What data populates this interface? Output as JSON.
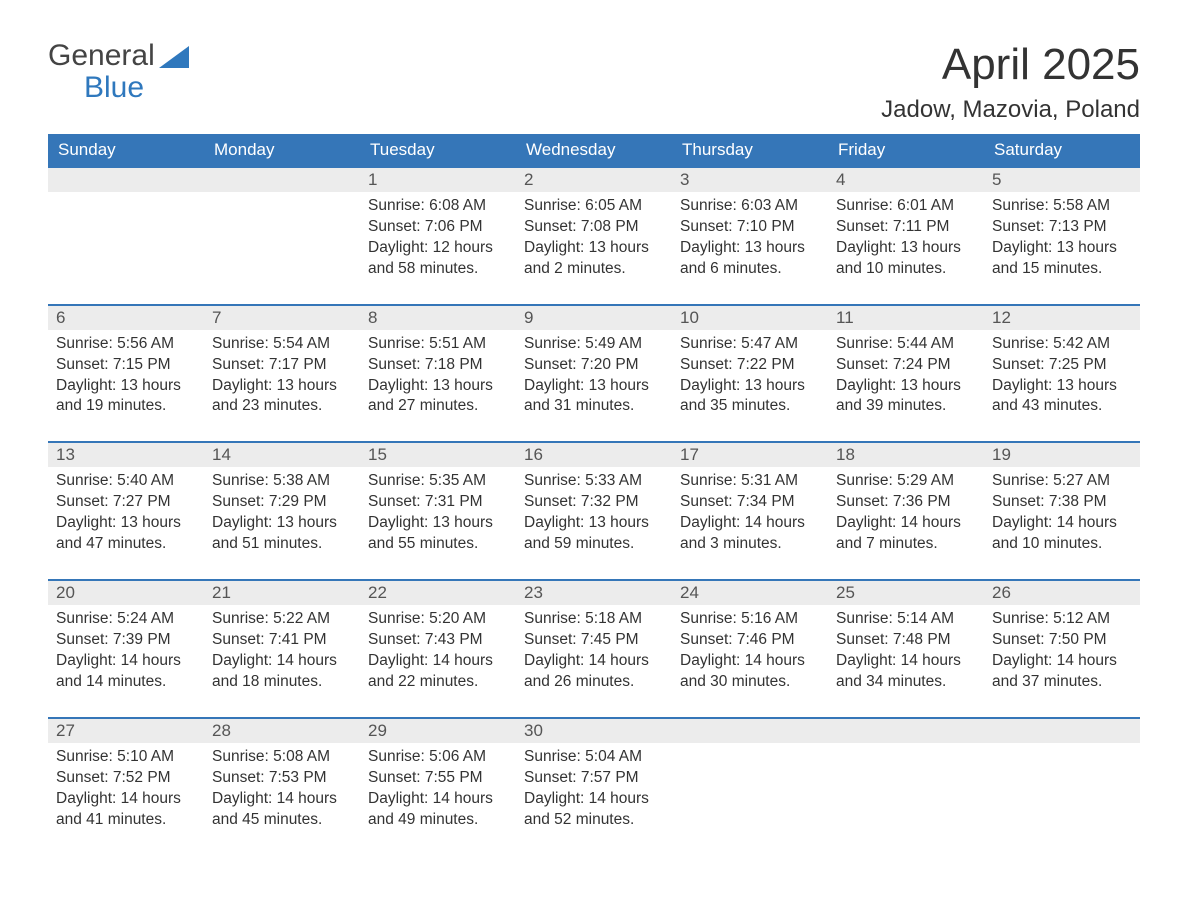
{
  "brand": {
    "word1": "General",
    "word2": "Blue",
    "general_color": "#444444",
    "blue_color": "#2f78bd",
    "sail_color": "#2f78bd"
  },
  "header": {
    "month_title": "April 2025",
    "location": "Jadow, Mazovia, Poland"
  },
  "style": {
    "header_bg": "#3576b8",
    "header_text": "#ffffff",
    "daynum_bg": "#ececec",
    "daynum_border": "#3576b8",
    "body_text": "#333333",
    "page_bg": "#ffffff",
    "title_fontsize": 44,
    "location_fontsize": 24,
    "th_fontsize": 17,
    "cell_fontsize": 15.5
  },
  "weekdays": [
    "Sunday",
    "Monday",
    "Tuesday",
    "Wednesday",
    "Thursday",
    "Friday",
    "Saturday"
  ],
  "weeks": [
    {
      "days": [
        null,
        null,
        {
          "n": "1",
          "sunrise": "Sunrise: 6:08 AM",
          "sunset": "Sunset: 7:06 PM",
          "day1": "Daylight: 12 hours",
          "day2": "and 58 minutes."
        },
        {
          "n": "2",
          "sunrise": "Sunrise: 6:05 AM",
          "sunset": "Sunset: 7:08 PM",
          "day1": "Daylight: 13 hours",
          "day2": "and 2 minutes."
        },
        {
          "n": "3",
          "sunrise": "Sunrise: 6:03 AM",
          "sunset": "Sunset: 7:10 PM",
          "day1": "Daylight: 13 hours",
          "day2": "and 6 minutes."
        },
        {
          "n": "4",
          "sunrise": "Sunrise: 6:01 AM",
          "sunset": "Sunset: 7:11 PM",
          "day1": "Daylight: 13 hours",
          "day2": "and 10 minutes."
        },
        {
          "n": "5",
          "sunrise": "Sunrise: 5:58 AM",
          "sunset": "Sunset: 7:13 PM",
          "day1": "Daylight: 13 hours",
          "day2": "and 15 minutes."
        }
      ]
    },
    {
      "days": [
        {
          "n": "6",
          "sunrise": "Sunrise: 5:56 AM",
          "sunset": "Sunset: 7:15 PM",
          "day1": "Daylight: 13 hours",
          "day2": "and 19 minutes."
        },
        {
          "n": "7",
          "sunrise": "Sunrise: 5:54 AM",
          "sunset": "Sunset: 7:17 PM",
          "day1": "Daylight: 13 hours",
          "day2": "and 23 minutes."
        },
        {
          "n": "8",
          "sunrise": "Sunrise: 5:51 AM",
          "sunset": "Sunset: 7:18 PM",
          "day1": "Daylight: 13 hours",
          "day2": "and 27 minutes."
        },
        {
          "n": "9",
          "sunrise": "Sunrise: 5:49 AM",
          "sunset": "Sunset: 7:20 PM",
          "day1": "Daylight: 13 hours",
          "day2": "and 31 minutes."
        },
        {
          "n": "10",
          "sunrise": "Sunrise: 5:47 AM",
          "sunset": "Sunset: 7:22 PM",
          "day1": "Daylight: 13 hours",
          "day2": "and 35 minutes."
        },
        {
          "n": "11",
          "sunrise": "Sunrise: 5:44 AM",
          "sunset": "Sunset: 7:24 PM",
          "day1": "Daylight: 13 hours",
          "day2": "and 39 minutes."
        },
        {
          "n": "12",
          "sunrise": "Sunrise: 5:42 AM",
          "sunset": "Sunset: 7:25 PM",
          "day1": "Daylight: 13 hours",
          "day2": "and 43 minutes."
        }
      ]
    },
    {
      "days": [
        {
          "n": "13",
          "sunrise": "Sunrise: 5:40 AM",
          "sunset": "Sunset: 7:27 PM",
          "day1": "Daylight: 13 hours",
          "day2": "and 47 minutes."
        },
        {
          "n": "14",
          "sunrise": "Sunrise: 5:38 AM",
          "sunset": "Sunset: 7:29 PM",
          "day1": "Daylight: 13 hours",
          "day2": "and 51 minutes."
        },
        {
          "n": "15",
          "sunrise": "Sunrise: 5:35 AM",
          "sunset": "Sunset: 7:31 PM",
          "day1": "Daylight: 13 hours",
          "day2": "and 55 minutes."
        },
        {
          "n": "16",
          "sunrise": "Sunrise: 5:33 AM",
          "sunset": "Sunset: 7:32 PM",
          "day1": "Daylight: 13 hours",
          "day2": "and 59 minutes."
        },
        {
          "n": "17",
          "sunrise": "Sunrise: 5:31 AM",
          "sunset": "Sunset: 7:34 PM",
          "day1": "Daylight: 14 hours",
          "day2": "and 3 minutes."
        },
        {
          "n": "18",
          "sunrise": "Sunrise: 5:29 AM",
          "sunset": "Sunset: 7:36 PM",
          "day1": "Daylight: 14 hours",
          "day2": "and 7 minutes."
        },
        {
          "n": "19",
          "sunrise": "Sunrise: 5:27 AM",
          "sunset": "Sunset: 7:38 PM",
          "day1": "Daylight: 14 hours",
          "day2": "and 10 minutes."
        }
      ]
    },
    {
      "days": [
        {
          "n": "20",
          "sunrise": "Sunrise: 5:24 AM",
          "sunset": "Sunset: 7:39 PM",
          "day1": "Daylight: 14 hours",
          "day2": "and 14 minutes."
        },
        {
          "n": "21",
          "sunrise": "Sunrise: 5:22 AM",
          "sunset": "Sunset: 7:41 PM",
          "day1": "Daylight: 14 hours",
          "day2": "and 18 minutes."
        },
        {
          "n": "22",
          "sunrise": "Sunrise: 5:20 AM",
          "sunset": "Sunset: 7:43 PM",
          "day1": "Daylight: 14 hours",
          "day2": "and 22 minutes."
        },
        {
          "n": "23",
          "sunrise": "Sunrise: 5:18 AM",
          "sunset": "Sunset: 7:45 PM",
          "day1": "Daylight: 14 hours",
          "day2": "and 26 minutes."
        },
        {
          "n": "24",
          "sunrise": "Sunrise: 5:16 AM",
          "sunset": "Sunset: 7:46 PM",
          "day1": "Daylight: 14 hours",
          "day2": "and 30 minutes."
        },
        {
          "n": "25",
          "sunrise": "Sunrise: 5:14 AM",
          "sunset": "Sunset: 7:48 PM",
          "day1": "Daylight: 14 hours",
          "day2": "and 34 minutes."
        },
        {
          "n": "26",
          "sunrise": "Sunrise: 5:12 AM",
          "sunset": "Sunset: 7:50 PM",
          "day1": "Daylight: 14 hours",
          "day2": "and 37 minutes."
        }
      ]
    },
    {
      "days": [
        {
          "n": "27",
          "sunrise": "Sunrise: 5:10 AM",
          "sunset": "Sunset: 7:52 PM",
          "day1": "Daylight: 14 hours",
          "day2": "and 41 minutes."
        },
        {
          "n": "28",
          "sunrise": "Sunrise: 5:08 AM",
          "sunset": "Sunset: 7:53 PM",
          "day1": "Daylight: 14 hours",
          "day2": "and 45 minutes."
        },
        {
          "n": "29",
          "sunrise": "Sunrise: 5:06 AM",
          "sunset": "Sunset: 7:55 PM",
          "day1": "Daylight: 14 hours",
          "day2": "and 49 minutes."
        },
        {
          "n": "30",
          "sunrise": "Sunrise: 5:04 AM",
          "sunset": "Sunset: 7:57 PM",
          "day1": "Daylight: 14 hours",
          "day2": "and 52 minutes."
        },
        null,
        null,
        null
      ]
    }
  ]
}
